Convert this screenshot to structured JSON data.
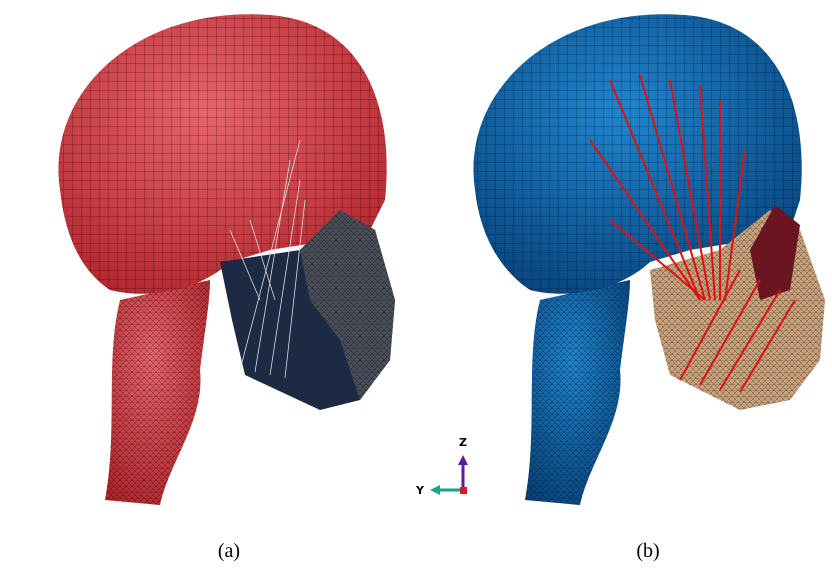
{
  "panels": [
    {
      "label": "(a)"
    },
    {
      "label": "(b)"
    }
  ],
  "axes": {
    "z": "Z",
    "y": "Y"
  }
}
